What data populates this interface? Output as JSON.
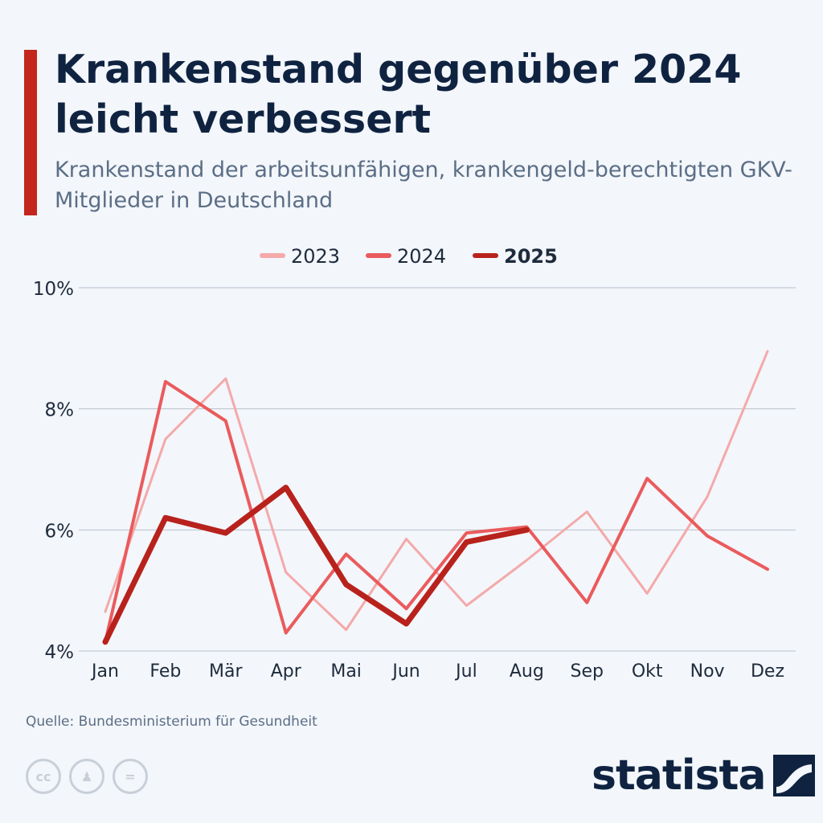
{
  "colors": {
    "background": "#f3f6fa",
    "accent": "#c3261d",
    "title": "#0f2341",
    "subtitle": "#5b6e86",
    "grid": "#b9c2cf",
    "series_2023": "#f4a9aa",
    "series_2024": "#ea5b5d",
    "series_2025": "#b8221c"
  },
  "header": {
    "title": "Krankenstand gegenüber 2024 leicht verbessert",
    "subtitle": "Krankenstand der arbeitsunfähigen, krankengeld-berechtigten GKV-Mitglieder in Deutschland"
  },
  "chart_data": {
    "type": "line",
    "title": "Krankenstand gegenüber 2024 leicht verbessert",
    "subtitle": "Krankenstand der arbeitsunfähigen, krankengeld-berechtigten GKV-Mitglieder in Deutschland",
    "xlabel": "",
    "ylabel": "",
    "categories": [
      "Jan",
      "Feb",
      "Mär",
      "Apr",
      "Mai",
      "Jun",
      "Jul",
      "Aug",
      "Sep",
      "Okt",
      "Nov",
      "Dez"
    ],
    "y_ticks": [
      4,
      6,
      8,
      10
    ],
    "y_tick_labels": [
      "4%",
      "6%",
      "8%",
      "10%"
    ],
    "ylim": [
      4,
      10
    ],
    "grid": true,
    "legend_position": "top-center",
    "series": [
      {
        "name": "2023",
        "color": "#f4a9aa",
        "values": [
          4.65,
          7.5,
          8.5,
          5.3,
          4.35,
          5.85,
          4.75,
          5.5,
          6.3,
          4.95,
          6.55,
          8.95
        ]
      },
      {
        "name": "2024",
        "color": "#ea5b5d",
        "values": [
          4.15,
          8.45,
          7.8,
          4.3,
          5.6,
          4.7,
          5.95,
          6.05,
          4.8,
          6.85,
          5.9,
          5.35
        ]
      },
      {
        "name": "2025",
        "color": "#b8221c",
        "values": [
          4.15,
          6.2,
          5.95,
          6.7,
          5.1,
          4.45,
          5.8,
          6.0,
          null,
          null,
          null,
          null
        ]
      }
    ]
  },
  "footer": {
    "source": "Quelle: Bundesministerium für Gesundheit",
    "brand": "statista",
    "license_icons": [
      {
        "name": "cc-icon",
        "glyph": "cc"
      },
      {
        "name": "attribution-icon",
        "glyph": "♟"
      },
      {
        "name": "no-derivatives-icon",
        "glyph": "="
      }
    ]
  }
}
